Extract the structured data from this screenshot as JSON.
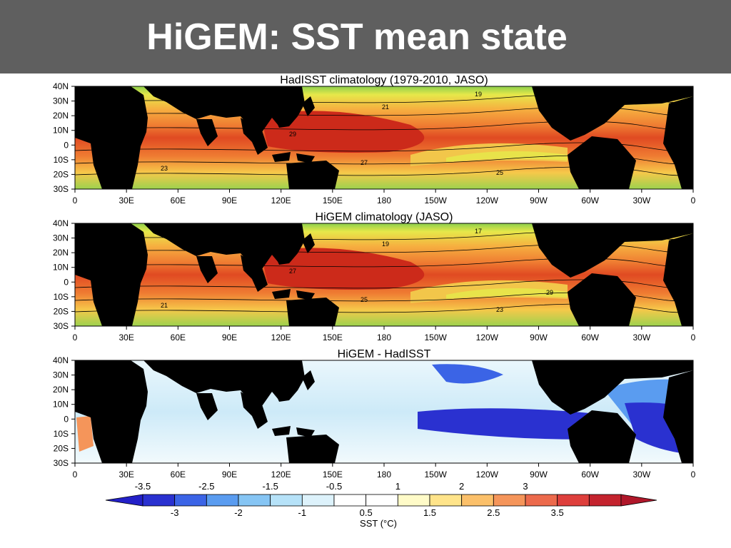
{
  "slide": {
    "title": "HiGEM: SST mean state"
  },
  "axes": {
    "lat_ticks": [
      "40N",
      "30N",
      "20N",
      "10N",
      "0",
      "10S",
      "20S",
      "30S"
    ],
    "lon_ticks": [
      "0",
      "30E",
      "60E",
      "90E",
      "120E",
      "150E",
      "180",
      "150W",
      "120W",
      "90W",
      "60W",
      "30W",
      "0"
    ]
  },
  "panels": [
    {
      "title": "HadISST climatology (1979-2010, JASO)",
      "kind": "absolute",
      "contour_labels": [
        "19",
        "21",
        "23",
        "25",
        "27",
        "29"
      ]
    },
    {
      "title": "HiGEM climatology (JASO)",
      "kind": "absolute",
      "contour_labels": [
        "17",
        "19",
        "21",
        "23",
        "25",
        "27",
        "29"
      ]
    },
    {
      "title": "HiGEM - HadISST",
      "kind": "difference",
      "contour_labels": []
    }
  ],
  "colorbar": {
    "title": "SST (°C)",
    "upper_labels": [
      "-3.5",
      "-2.5",
      "-1.5",
      "-0.5",
      "1",
      "2",
      "3"
    ],
    "lower_labels": [
      "-3",
      "-2",
      "-1",
      "0.5",
      "1.5",
      "2.5",
      "3.5"
    ],
    "colors": [
      "#2a31d0",
      "#3b64e6",
      "#5a9cf0",
      "#86c5f4",
      "#b6e2f8",
      "#ddf2fb",
      "#ffffff",
      "#ffffff",
      "#fffbc8",
      "#ffe48a",
      "#fbc06a",
      "#f5955a",
      "#ec6a4c",
      "#de3f3c",
      "#c4232e"
    ]
  }
}
